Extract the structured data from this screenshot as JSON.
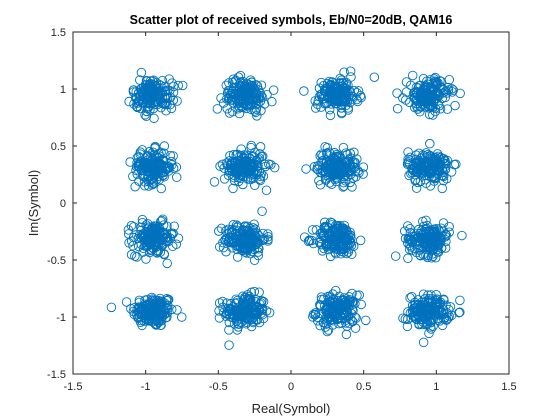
{
  "chart_data": {
    "type": "scatter",
    "title": "Scatter plot of received symbols, Eb/N0=20dB, QAM16",
    "xlabel": "Real(Symbol)",
    "ylabel": "Im(Symbol)",
    "xlim": [
      -1.5,
      1.5
    ],
    "ylim": [
      -1.5,
      1.5
    ],
    "xticks": [
      "-1.5",
      "-1",
      "-0.5",
      "0",
      "0.5",
      "1",
      "1.5"
    ],
    "yticks": [
      "-1.5",
      "-1",
      "-0.5",
      "0",
      "0.5",
      "1",
      "1.5"
    ],
    "grid": false,
    "marker": "circle-open",
    "color": "#0072BD",
    "constellation_levels": [
      -0.9487,
      -0.3162,
      0.3162,
      0.9487
    ],
    "noise_std": 0.071,
    "points_per_cluster": 160
  }
}
